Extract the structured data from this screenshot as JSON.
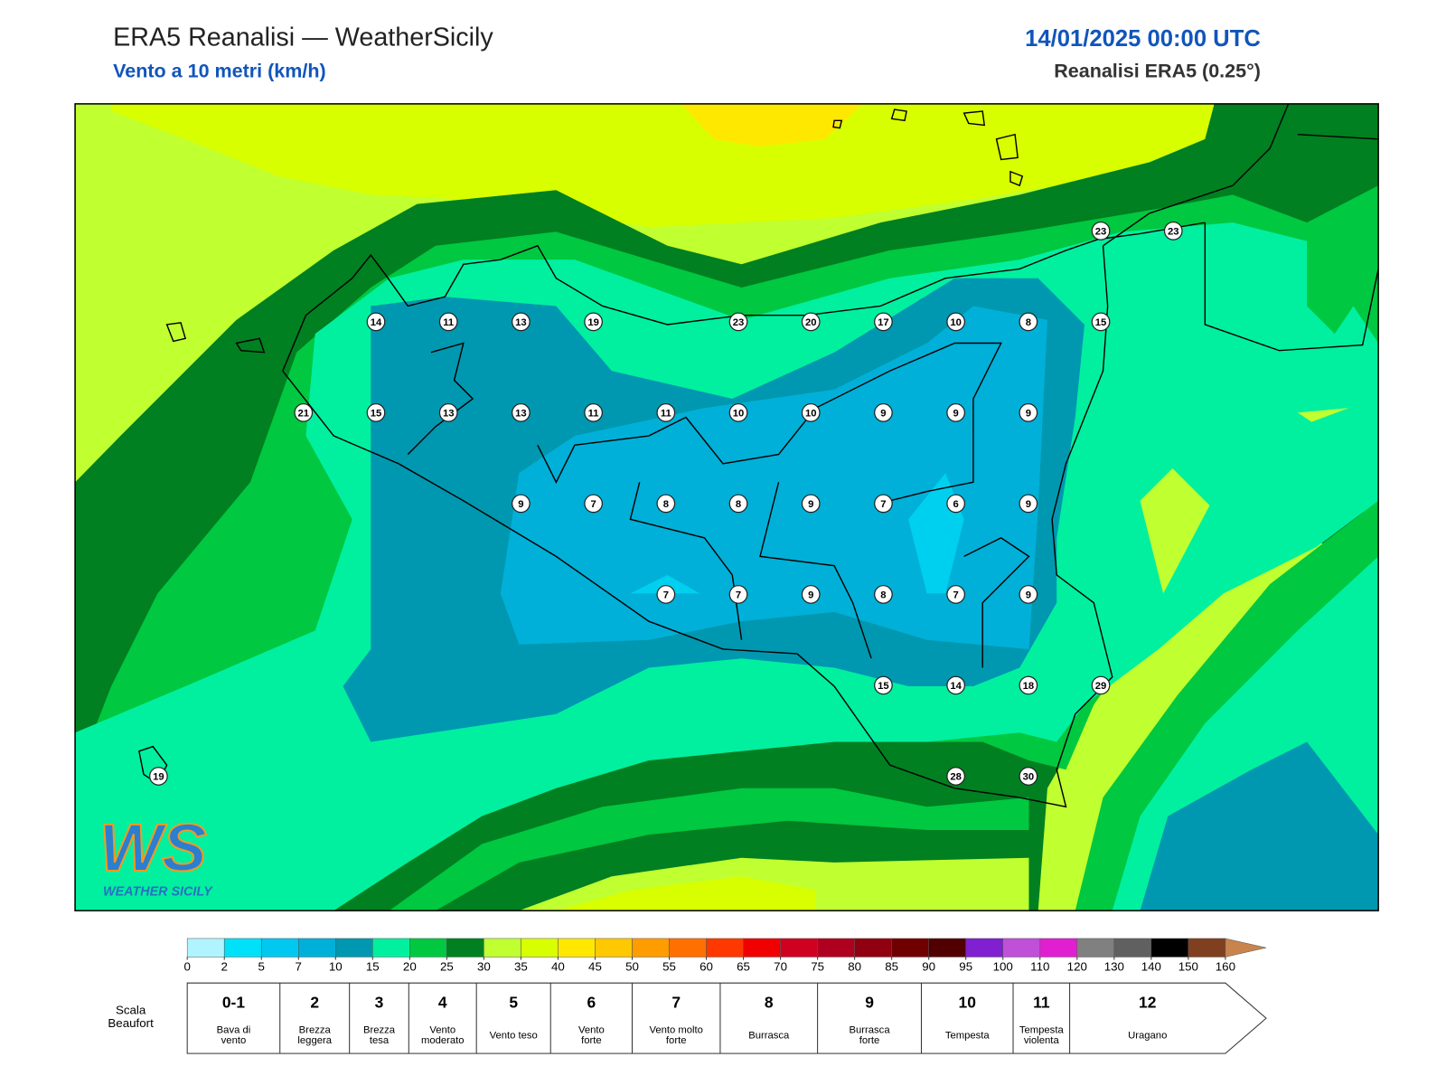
{
  "header": {
    "title": "ERA5 Reanalisi — WeatherSicily",
    "subtitle": "Vento a 10 metri (km/h)",
    "datetime": "14/01/2025 00:00 UTC",
    "source": "Reanalisi ERA5 (0.25°)"
  },
  "map": {
    "stations": [
      [
        null,
        null,
        null,
        null,
        null,
        null,
        null,
        null,
        null,
        null,
        null,
        null,
        null,
        23,
        23
      ],
      [
        null,
        null,
        null,
        14,
        11,
        13,
        19,
        null,
        23,
        20,
        17,
        10,
        8,
        15,
        null
      ],
      [
        null,
        null,
        21,
        15,
        13,
        13,
        11,
        11,
        10,
        10,
        9,
        9,
        9,
        null,
        null
      ],
      [
        null,
        null,
        null,
        null,
        null,
        9,
        7,
        8,
        8,
        9,
        7,
        6,
        9,
        null,
        null
      ],
      [
        null,
        null,
        null,
        null,
        null,
        null,
        null,
        7,
        7,
        9,
        8,
        7,
        9,
        null,
        null
      ],
      [
        null,
        null,
        null,
        null,
        null,
        null,
        null,
        null,
        null,
        null,
        15,
        14,
        18,
        29,
        null
      ],
      [
        19,
        null,
        null,
        null,
        null,
        null,
        null,
        null,
        null,
        null,
        null,
        28,
        30,
        null,
        null
      ]
    ]
  },
  "logo": {
    "mark": "WS",
    "name": "WEATHER SICILY"
  },
  "colorbar": {
    "ticks": [
      0,
      2,
      5,
      7,
      10,
      15,
      20,
      25,
      30,
      35,
      40,
      45,
      50,
      55,
      60,
      65,
      70,
      75,
      80,
      85,
      90,
      95,
      100,
      110,
      120,
      130,
      140,
      150,
      160
    ],
    "colors": [
      "#b0f4ff",
      "#00e0f8",
      "#00c8f0",
      "#00b0d8",
      "#0098b0",
      "#00f0a0",
      "#00c840",
      "#008020",
      "#c0ff30",
      "#d8ff00",
      "#ffe800",
      "#ffc800",
      "#ff9c00",
      "#ff7000",
      "#ff3800",
      "#f00000",
      "#d00020",
      "#b00020",
      "#900010",
      "#700000",
      "#500000",
      "#8020d0",
      "#c050d8",
      "#e020d0",
      "#808080",
      "#606060",
      "#000000",
      "#804020"
    ],
    "extend_color": "#c8844c"
  },
  "beaufort": {
    "label": [
      "Scala",
      "Beaufort"
    ],
    "levels": [
      {
        "force": "0-1",
        "description": [
          "Bava di",
          "vento"
        ]
      },
      {
        "force": "2",
        "description": [
          "Brezza",
          "leggera"
        ]
      },
      {
        "force": "3",
        "description": [
          "Brezza",
          "tesa"
        ]
      },
      {
        "force": "4",
        "description": [
          "Vento",
          "moderato"
        ]
      },
      {
        "force": "5",
        "description": [
          "Vento teso"
        ]
      },
      {
        "force": "6",
        "description": [
          "Vento",
          "forte"
        ]
      },
      {
        "force": "7",
        "description": [
          "Vento molto",
          "forte"
        ]
      },
      {
        "force": "8",
        "description": [
          "Burrasca"
        ]
      },
      {
        "force": "9",
        "description": [
          "Burrasca",
          "forte"
        ]
      },
      {
        "force": "10",
        "description": [
          "Tempesta"
        ]
      },
      {
        "force": "11",
        "description": [
          "Tempesta",
          "violenta"
        ]
      },
      {
        "force": "12",
        "description": [
          "Uragano"
        ]
      }
    ]
  }
}
